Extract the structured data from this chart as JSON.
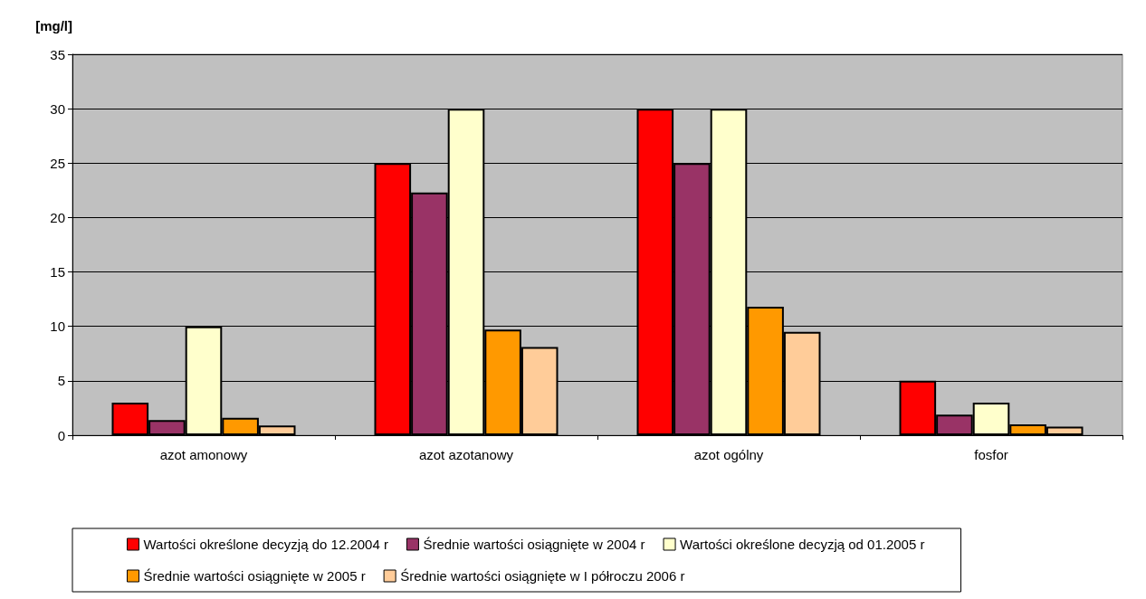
{
  "chart_data": {
    "type": "bar",
    "ylabel": "[mg/l]",
    "categories": [
      "azot amonowy",
      "azot azotanowy",
      "azot ogólny",
      "fosfor"
    ],
    "series": [
      {
        "name": "Wartości określone decyzją do 12.2004 r",
        "color": "#ff0000",
        "values": [
          3,
          25,
          30,
          5
        ]
      },
      {
        "name": "Średnie wartości osiągnięte w 2004 r",
        "color": "#993366",
        "values": [
          1.4,
          22.3,
          25,
          1.9
        ]
      },
      {
        "name": "Wartości określone decyzją od 01.2005 r",
        "color": "#ffffcc",
        "values": [
          10,
          30,
          30,
          3
        ]
      },
      {
        "name": "Średnie wartości osiągnięte w 2005 r",
        "color": "#ff9900",
        "values": [
          1.6,
          9.7,
          11.8,
          1
        ]
      },
      {
        "name": "Średnie wartości osiągnięte w I półroczu 2006 r",
        "color": "#ffcc99",
        "values": [
          0.9,
          8.1,
          9.5,
          0.8
        ]
      }
    ],
    "ylim": [
      0,
      35
    ],
    "yticks": [
      0,
      5,
      10,
      15,
      20,
      25,
      30,
      35
    ],
    "grid": "y",
    "legend": "bottom"
  }
}
